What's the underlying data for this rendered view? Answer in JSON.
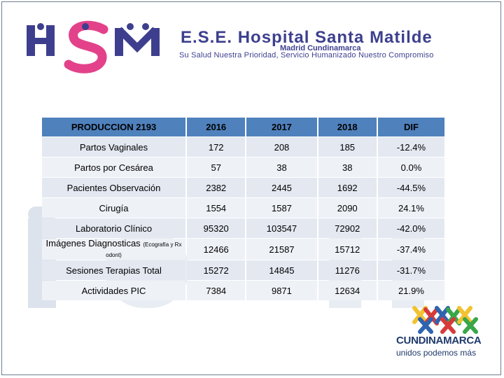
{
  "header": {
    "hospital_name": "E.S.E. Hospital Santa Matilde",
    "town": "Madrid Cundinamarca",
    "slogan": "Su Salud Nuestra Prioridad, Servicio Humanizado Nuestro Compromiso",
    "logo_text": "HSM"
  },
  "table": {
    "headers": [
      "PRODUCCION 2193",
      "2016",
      "2017",
      "2018",
      "DIF"
    ],
    "rows": [
      {
        "label": "Partos Vaginales",
        "v2016": "172",
        "v2017": "208",
        "v2018": "185",
        "dif": "-12.4%"
      },
      {
        "label": "Partos por Cesárea",
        "v2016": "57",
        "v2017": "38",
        "v2018": "38",
        "dif": "0.0%"
      },
      {
        "label": "Pacientes Observación",
        "v2016": "2382",
        "v2017": "2445",
        "v2018": "1692",
        "dif": "-44.5%"
      },
      {
        "label": "Cirugía",
        "v2016": "1554",
        "v2017": "1587",
        "v2018": "2090",
        "dif": "24.1%"
      },
      {
        "label": "Laboratorio Clínico",
        "v2016": "95320",
        "v2017": "103547",
        "v2018": "72902",
        "dif": "-42.0%"
      },
      {
        "label": "Imágenes Diagnosticas",
        "label_note": "(Ecografía y Rx odont)",
        "v2016": "12466",
        "v2017": "21587",
        "v2018": "15712",
        "dif": "-37.4%"
      },
      {
        "label": "Sesiones Terapias Total",
        "v2016": "15272",
        "v2017": "14845",
        "v2018": "11276",
        "dif": "-31.7%"
      },
      {
        "label": "Actividades PIC",
        "v2016": "7384",
        "v2017": "9871",
        "v2018": "12634",
        "dif": "21.9%"
      }
    ]
  },
  "footer_logo": {
    "name": "CUNDINAMARCA",
    "slogan": "unidos podemos más"
  },
  "colors": {
    "header_blue": "#4f81bd",
    "brand_navy": "#3d3f8e",
    "brand_pink": "#e3428a"
  }
}
